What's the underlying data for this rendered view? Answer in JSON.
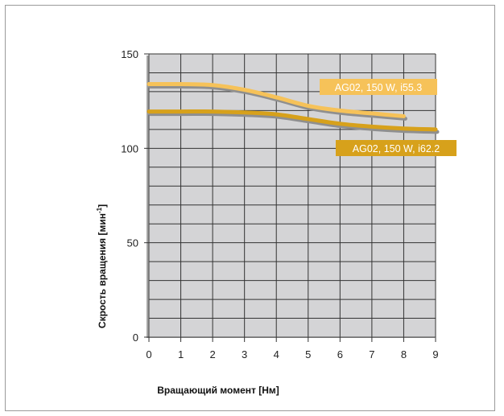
{
  "chart_data": {
    "type": "line",
    "xlabel": "Вращающий момент [Нм]",
    "ylabel": "Скрость вращения [мин",
    "ylabel_superscript": "-1",
    "ylabel_suffix": "]",
    "xlim": [
      0,
      9
    ],
    "ylim": [
      0,
      150
    ],
    "x_ticks": [
      0,
      1,
      2,
      3,
      4,
      5,
      6,
      7,
      8,
      9
    ],
    "y_ticks": [
      0,
      50,
      100,
      150
    ],
    "grid": true,
    "series": [
      {
        "name": "AG02, 150 W, i55.3",
        "color": "#f6c259",
        "x": [
          0,
          1,
          2,
          3,
          4,
          5,
          6,
          7,
          8
        ],
        "y": [
          134,
          134,
          133.5,
          131,
          127,
          122.5,
          120,
          118.5,
          117
        ]
      },
      {
        "name": "AG02, 150 W, i62.2",
        "color": "#d7a11b",
        "x": [
          0,
          1,
          2,
          3,
          4,
          5,
          6,
          7,
          8,
          9
        ],
        "y": [
          119.5,
          119.5,
          119.5,
          119,
          118,
          115.5,
          113,
          111.5,
          110.5,
          110
        ]
      }
    ]
  }
}
